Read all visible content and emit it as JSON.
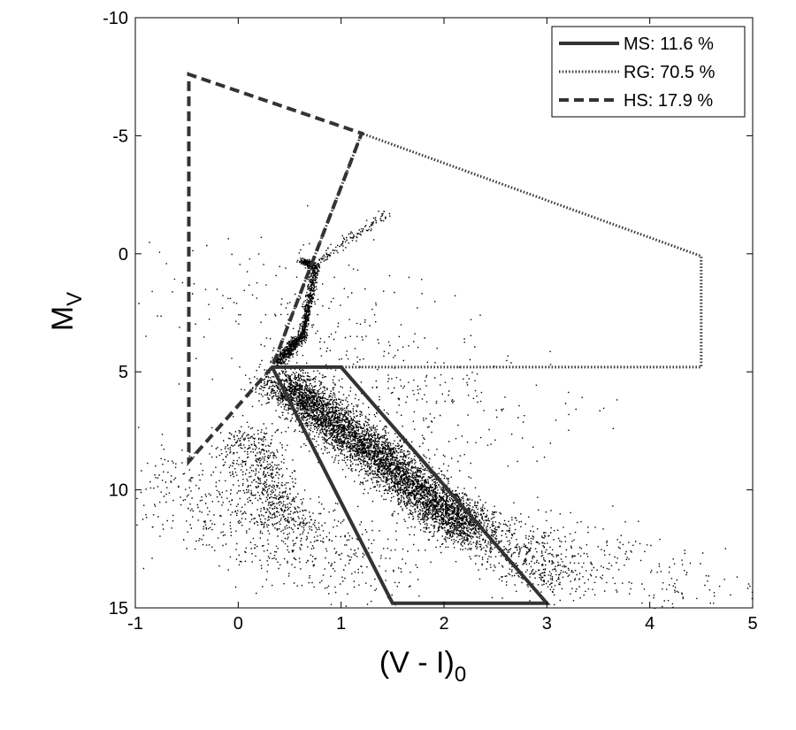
{
  "chart_data": {
    "type": "scatter",
    "title": "",
    "xlabel": "(V - I)",
    "xlabel_sub": "0",
    "ylabel": "M",
    "ylabel_sub": "V",
    "xlim": [
      -1,
      5
    ],
    "ylim": [
      -10,
      15
    ],
    "y_inverted": true,
    "grid": false,
    "legend_position": "top-right",
    "xticks": [
      -1,
      0,
      1,
      2,
      3,
      4,
      5
    ],
    "xtick_labels": [
      "-1",
      "0",
      "1",
      "2",
      "3",
      "4",
      "5"
    ],
    "yticks": [
      -10,
      -5,
      0,
      5,
      10,
      15
    ],
    "ytick_labels": [
      "-10",
      "-5",
      "0",
      "5",
      "10",
      "15"
    ],
    "colors": {
      "box": "#333333",
      "points": "#000000",
      "frame": "#000000"
    },
    "series": [
      {
        "name": "MS: 11.6 %",
        "line_style": "solid",
        "x": [
          0.33,
          1.0,
          3.0,
          1.5,
          0.33
        ],
        "y": [
          4.8,
          4.8,
          14.8,
          14.8,
          4.8
        ]
      },
      {
        "name": "RG: 70.5 %",
        "line_style": "dotted",
        "x": [
          0.33,
          1.2,
          4.5,
          4.5,
          0.33
        ],
        "y": [
          4.8,
          -5.1,
          0.1,
          4.8,
          4.8
        ]
      },
      {
        "name": "HS: 17.9 %",
        "line_style": "dashed",
        "x": [
          0.33,
          -0.48,
          -0.48,
          1.2,
          0.33
        ],
        "y": [
          4.8,
          8.8,
          -7.6,
          -5.1,
          4.8
        ]
      }
    ],
    "point_clouds": [
      {
        "kind": "main_sequence",
        "from_x": 0.4,
        "from_y": 5.3,
        "to_x": 2.25,
        "to_y": 11.7,
        "width": 0.3,
        "count": 5200
      },
      {
        "kind": "main_sequence_tail",
        "from_x": 2.0,
        "from_y": 11.0,
        "to_x": 3.2,
        "to_y": 13.8,
        "width": 0.45,
        "count": 700
      },
      {
        "kind": "turnoff_subgiant",
        "from_x": 0.38,
        "from_y": 4.6,
        "to_x": 0.62,
        "to_y": 3.4,
        "width": 0.07,
        "count": 500
      },
      {
        "kind": "giant_branch",
        "from_x": 0.62,
        "from_y": 3.4,
        "to_x": 0.75,
        "to_y": 0.4,
        "width": 0.04,
        "count": 450
      },
      {
        "kind": "giant_branch_upper",
        "from_x": 0.75,
        "from_y": 0.4,
        "to_x": 1.45,
        "to_y": -1.8,
        "width": 0.07,
        "count": 120
      },
      {
        "kind": "red_clump",
        "from_x": 0.62,
        "from_y": 0.25,
        "to_x": 0.72,
        "to_y": 0.55,
        "width": 0.05,
        "count": 150
      },
      {
        "kind": "blue_straggler_halo",
        "from_x": 0.05,
        "from_y": 7.5,
        "to_x": 0.5,
        "to_y": 11.5,
        "width": 0.3,
        "count": 600
      },
      {
        "kind": "white_dwarf_halo",
        "from_x": -0.7,
        "from_y": 9.5,
        "to_x": 1.3,
        "to_y": 13.5,
        "width": 0.8,
        "count": 700
      },
      {
        "kind": "field_scatter",
        "from_x": -0.2,
        "from_y": 1.0,
        "to_x": 2.5,
        "to_y": 8.0,
        "width": 1.2,
        "count": 450
      },
      {
        "kind": "far_red_scatter",
        "from_x": 2.8,
        "from_y": 11.5,
        "to_x": 4.6,
        "to_y": 14.5,
        "width": 0.6,
        "count": 200
      }
    ]
  }
}
